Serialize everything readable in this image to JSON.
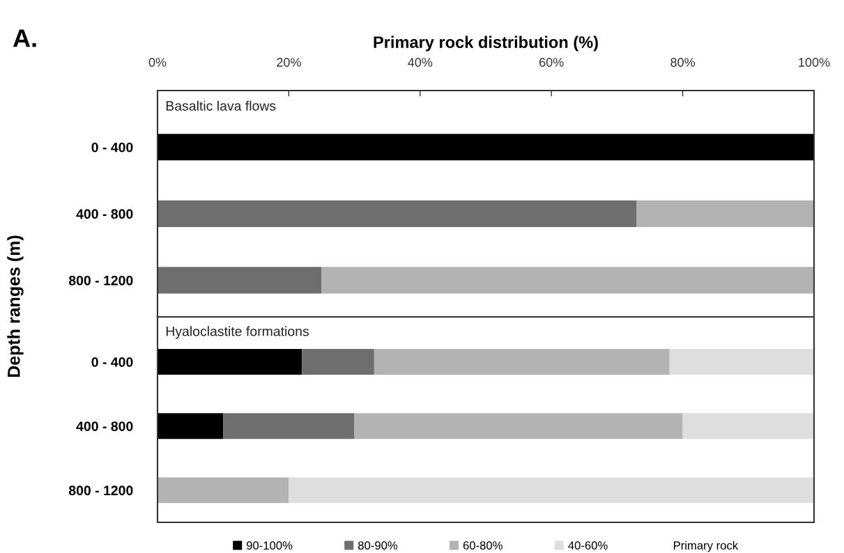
{
  "chart_data": [
    {
      "type": "bar",
      "orientation": "horizontal",
      "stacked": true,
      "xlabel": "Primary rock distribution (%)",
      "ylabel": "Depth ranges (m)",
      "categories": [
        "0 - 400",
        "400 - 800",
        "800 - 1200"
      ],
      "xlim": [
        0,
        100
      ],
      "xticks": [
        {
          "value": 0,
          "label": "0%"
        },
        {
          "value": 20,
          "label": "20%"
        },
        {
          "value": 40,
          "label": "40%"
        },
        {
          "value": 60,
          "label": "60%"
        },
        {
          "value": 80,
          "label": "80%"
        },
        {
          "value": 100,
          "label": "100%"
        }
      ],
      "grid": false,
      "annotations": [
        "A.",
        "Basaltic lava flows"
      ],
      "series": [
        {
          "color": "#000000",
          "values": [
            100,
            0,
            0
          ]
        },
        {
          "color": "#6e6e6e",
          "values": [
            0,
            73,
            25
          ]
        },
        {
          "color": "#b3b3b3",
          "values": [
            0,
            27,
            75
          ]
        },
        {
          "color": "#dedede",
          "values": [
            0,
            0,
            0
          ]
        }
      ]
    },
    {
      "type": "bar",
      "orientation": "horizontal",
      "stacked": true,
      "categories": [
        "0 - 400",
        "400 - 800",
        "800 - 1200"
      ],
      "xlim": [
        0,
        100
      ],
      "tick_labels": "y",
      "grid": false,
      "legend": "bottom",
      "legend_title": "Primary rock",
      "annotations": [
        "Hyaloclastite formations"
      ],
      "series": [
        {
          "name": "90-100%",
          "color": "#000000",
          "values": [
            22,
            10,
            0
          ]
        },
        {
          "name": "80-90%",
          "color": "#6e6e6e",
          "values": [
            11,
            20,
            0
          ]
        },
        {
          "name": "60-80%",
          "color": "#b3b3b3",
          "values": [
            45,
            50,
            20
          ]
        },
        {
          "name": "40-60%",
          "color": "#dedede",
          "values": [
            22,
            20,
            80
          ]
        }
      ]
    }
  ]
}
